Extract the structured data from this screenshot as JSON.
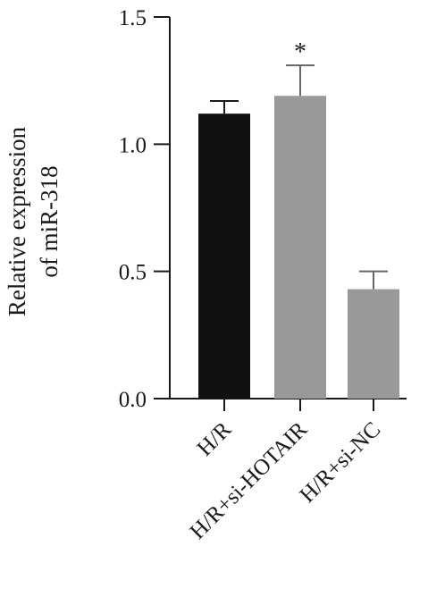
{
  "chart_data": {
    "type": "bar",
    "title": "",
    "xlabel": "",
    "ylabel_lines": [
      "Relative expression",
      "of miR-318"
    ],
    "ylim": [
      0,
      1.5
    ],
    "yticks": [
      "0.0",
      "0.5",
      "1.0",
      "1.5"
    ],
    "categories": [
      "H/R",
      "H/R+si-HOTAIR",
      "H/R+si-NC"
    ],
    "values": [
      1.12,
      1.19,
      0.43
    ],
    "errors": [
      0.05,
      0.12,
      0.07
    ],
    "bar_colors": [
      "#111111",
      "#999999",
      "#999999"
    ],
    "significance": [
      "",
      "*",
      ""
    ],
    "grid": false
  }
}
